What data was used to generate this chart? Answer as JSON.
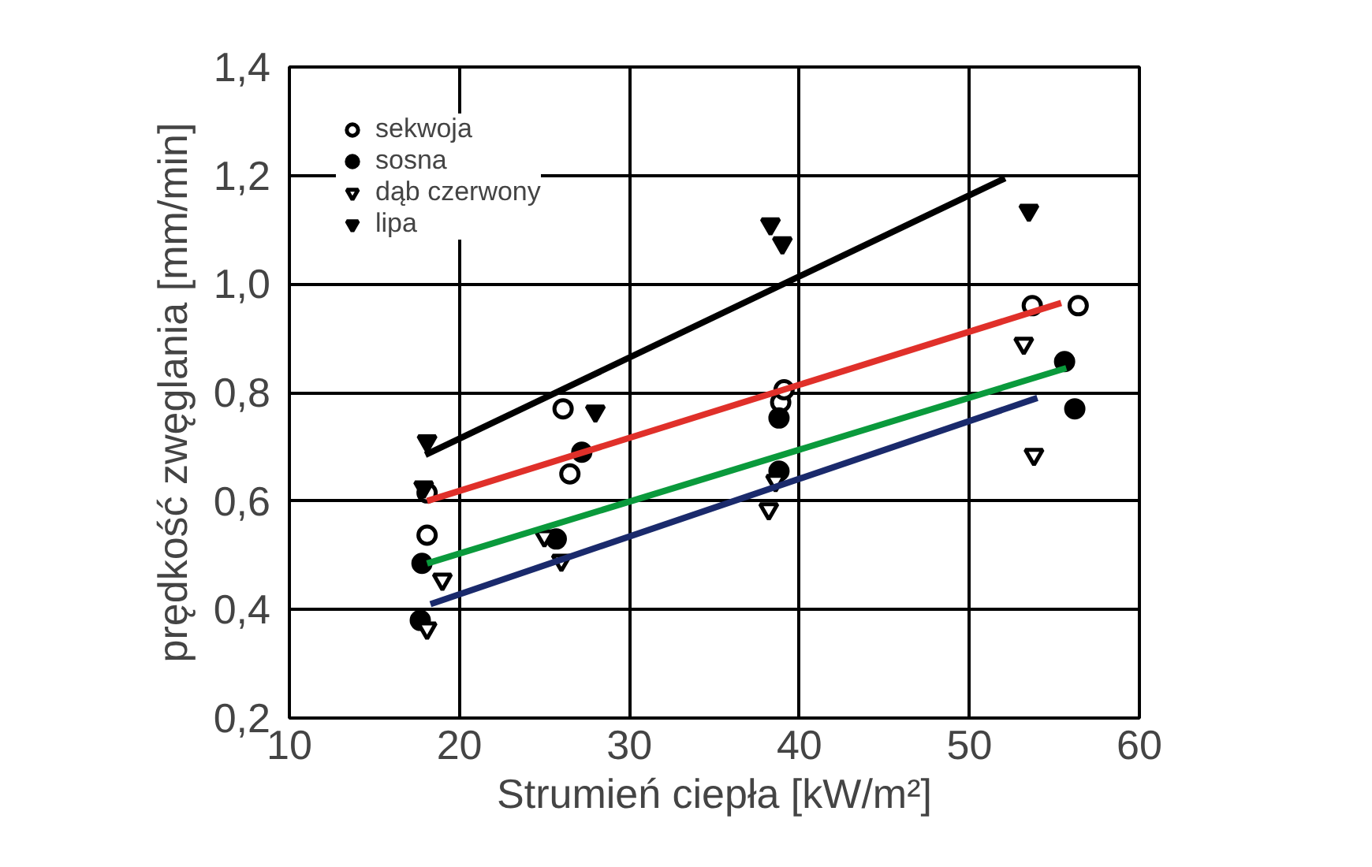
{
  "chart_data": {
    "type": "scatter",
    "xlabel": "Strumień ciepła [kW/m²]",
    "ylabel": "prędkość zwęglania [mm/min]",
    "xlim": [
      10,
      60
    ],
    "ylim": [
      0.2,
      1.4
    ],
    "xticks": [
      10,
      20,
      30,
      40,
      50,
      60
    ],
    "yticks": [
      {
        "value": 0.2,
        "label": "0,2"
      },
      {
        "value": 0.4,
        "label": "0,4"
      },
      {
        "value": 0.6,
        "label": "0,6"
      },
      {
        "value": 0.8,
        "label": "0,8"
      },
      {
        "value": 1.0,
        "label": "1,0"
      },
      {
        "value": 1.2,
        "label": "1,2"
      },
      {
        "value": 1.4,
        "label": "1,4"
      }
    ],
    "grid": true,
    "legend": "top left",
    "series": [
      {
        "name": "sekwoja",
        "color": "#000000",
        "marker": "circle_open",
        "x": [
          18.1,
          18.1,
          26.1,
          26.5,
          38.9,
          39.1,
          53.7,
          56.4
        ],
        "values": [
          0.615,
          0.537,
          0.77,
          0.65,
          0.782,
          0.805,
          0.96,
          0.96
        ]
      },
      {
        "name": "sosna",
        "color": "#000000",
        "marker": "circle",
        "x": [
          17.8,
          17.7,
          25.7,
          27.2,
          38.8,
          38.8,
          55.6,
          56.2
        ],
        "values": [
          0.485,
          0.38,
          0.53,
          0.69,
          0.753,
          0.655,
          0.857,
          0.77
        ]
      },
      {
        "name": "dąb czerwony",
        "color": "#000000",
        "marker": "triangle_open",
        "x": [
          18.1,
          19.0,
          25.0,
          26.0,
          38.2,
          38.6,
          53.2,
          53.8
        ],
        "values": [
          0.365,
          0.455,
          0.535,
          0.49,
          0.585,
          0.637,
          0.89,
          0.685
        ]
      },
      {
        "name": "lipa",
        "color": "#000000",
        "marker": "triangle",
        "x": [
          18.1,
          17.9,
          28.0,
          38.3,
          39.0,
          53.5
        ],
        "values": [
          0.71,
          0.625,
          0.765,
          1.11,
          1.075,
          1.135
        ]
      },
      {
        "type": "line",
        "color": "#000000",
        "x": [
          18.0,
          52.1
        ],
        "values": [
          0.685,
          1.195
        ]
      },
      {
        "type": "line",
        "color": "#e0302a",
        "x": [
          18.1,
          55.4
        ],
        "values": [
          0.6,
          0.965
        ]
      },
      {
        "type": "line",
        "color": "#0a9a3c",
        "x": [
          18.1,
          55.7
        ],
        "values": [
          0.485,
          0.845
        ]
      },
      {
        "type": "line",
        "color": "#1a2a6c",
        "x": [
          18.3,
          54.0
        ],
        "values": [
          0.41,
          0.79
        ]
      }
    ]
  }
}
